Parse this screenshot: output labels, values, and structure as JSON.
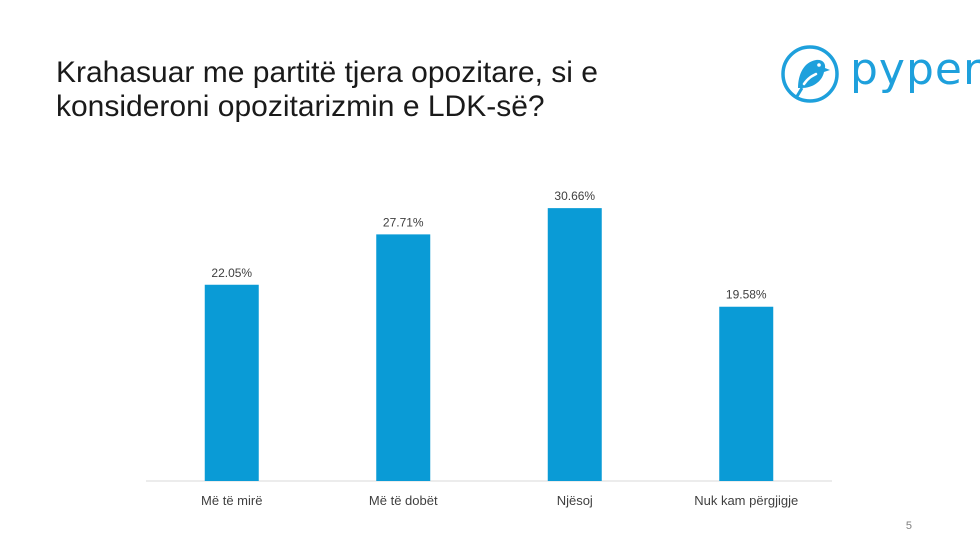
{
  "slide": {
    "title_lines": [
      "Krahasuar me partitë tjera opozitare, si e",
      "konsideroni opozitarizmin e LDK-së?"
    ],
    "page_number": "5"
  },
  "logo": {
    "text": "pyper"
  },
  "colors": {
    "bar": "#0a9bd6",
    "accent": "#1ea0dc",
    "axis": "#d9d9d9",
    "text": "#404040"
  },
  "chart_data": {
    "type": "bar",
    "title": "Krahasuar me partitë tjera opozitare, si e konsideroni opozitarizmin e LDK-së?",
    "categories": [
      "Më të mirë",
      "Më të dobët",
      "Njësoj",
      "Nuk kam përgjigje"
    ],
    "values": [
      22.05,
      27.71,
      30.66,
      19.58
    ],
    "data_labels": [
      "22.05%",
      "27.71%",
      "30.66%",
      "19.58%"
    ],
    "xlabel": "",
    "ylabel": "",
    "ylim": [
      0,
      35
    ],
    "grid": false,
    "legend": false
  }
}
